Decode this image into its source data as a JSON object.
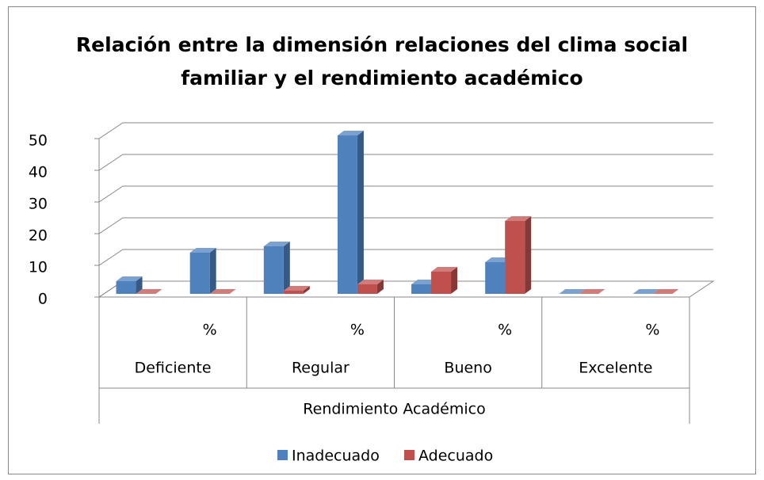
{
  "chart_data": {
    "type": "bar",
    "title": "Relación entre la dimensión relaciones del clima social",
    "title_line2": "familiar y el rendimiento académico",
    "categories": [
      null,
      "%",
      null,
      "%",
      null,
      "%",
      null,
      "%"
    ],
    "groups": [
      "Deficiente",
      "Regular",
      "Bueno",
      "Excelente"
    ],
    "x_label": "Rendimiento Académico",
    "series": [
      {
        "name": "Inadecuado",
        "color": "#4f81bd",
        "values": [
          4,
          13,
          15,
          50,
          3,
          10,
          0,
          0
        ]
      },
      {
        "name": "Adecuado",
        "color": "#c0504d",
        "values": [
          0,
          0,
          1,
          3,
          7,
          23,
          0,
          0
        ]
      }
    ],
    "ylim": [
      0,
      50
    ],
    "yticks": [
      0,
      10,
      20,
      30,
      40,
      50
    ],
    "grid": true,
    "legend": "bottom"
  }
}
